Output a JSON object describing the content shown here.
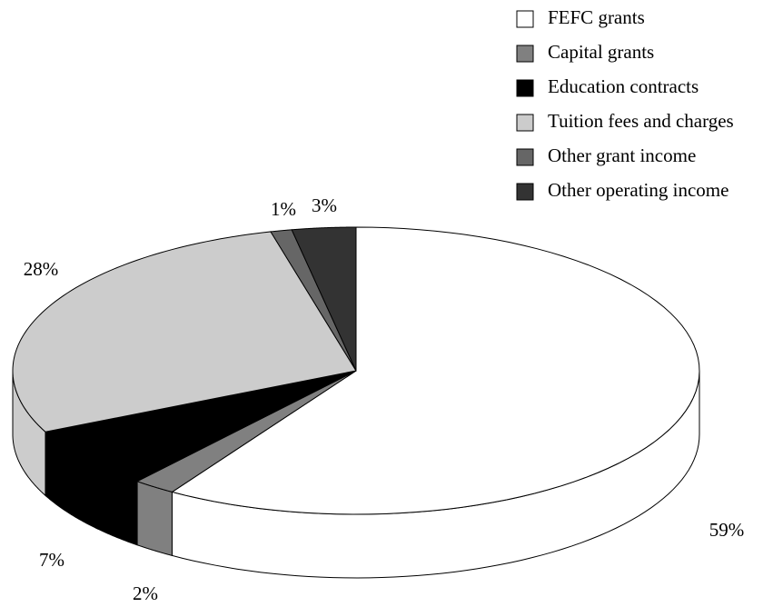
{
  "chart_data": {
    "type": "pie3d",
    "categories": [
      "FEFC grants",
      "Capital grants",
      "Education contracts",
      "Tuition fees and charges",
      "Other grant income",
      "Other operating income"
    ],
    "values": [
      59,
      2,
      7,
      28,
      1,
      3
    ],
    "value_labels": [
      "59%",
      "2%",
      "7%",
      "28%",
      "1%",
      "3%"
    ],
    "colors": [
      "#ffffff",
      "#808080",
      "#000000",
      "#cccccc",
      "#666666",
      "#333333"
    ],
    "legend": "top-right"
  }
}
